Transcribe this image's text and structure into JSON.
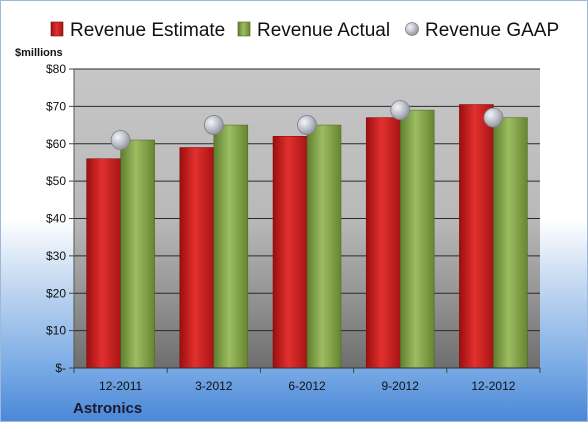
{
  "chart_data": {
    "type": "bar",
    "categories": [
      "12-2011",
      "3-2012",
      "6-2012",
      "9-2012",
      "12-2012"
    ],
    "series": [
      {
        "name": "Revenue Estimate",
        "kind": "bar",
        "color": "#cc1f1f",
        "values": [
          56,
          59,
          62,
          67,
          70.5
        ]
      },
      {
        "name": "Revenue Actual",
        "kind": "bar",
        "color": "#8aaa4e",
        "values": [
          61,
          65,
          65,
          69,
          67
        ]
      },
      {
        "name": "Revenue GAAP",
        "kind": "marker",
        "color": "#b8bcc4",
        "values": [
          61,
          65,
          65,
          69,
          67
        ]
      }
    ],
    "ylabel": "$millions",
    "ylim": [
      0,
      80
    ],
    "yticks": [
      0,
      10,
      20,
      30,
      40,
      50,
      60,
      70,
      80
    ],
    "ytick_labels": [
      "$-",
      "$10",
      "$20",
      "$30",
      "$40",
      "$50",
      "$60",
      "$70",
      "$80"
    ],
    "legend_position": "top",
    "grid": true
  },
  "company": "Astronics"
}
